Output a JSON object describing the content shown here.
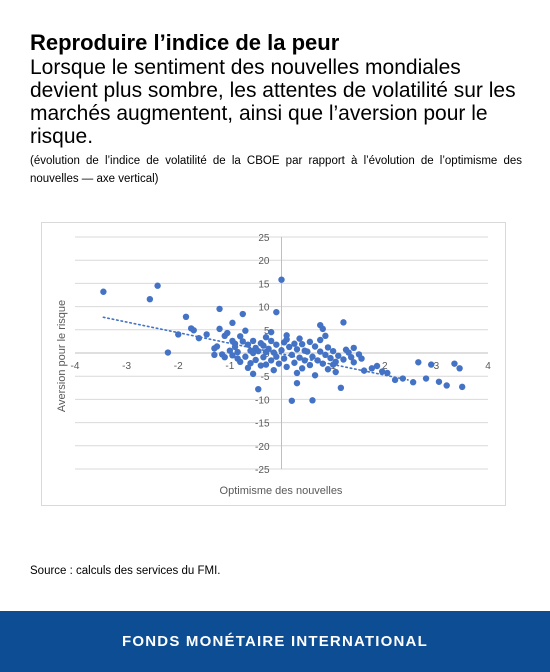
{
  "header": {
    "title": "Reproduire l’indice de la peur",
    "subtitle": "Lorsque le sentiment des nouvelles mondiales devient plus sombre, les attentes de volatilité sur les marchés augmentent, ainsi que l’aversion pour le risque.",
    "note": "(évolution de l’indice de volatilité de la CBOE par rapport à l’évolution de l’optimisme des nouvelles — axe vertical)"
  },
  "source": "Source : calculs des services du FMI.",
  "footer": {
    "org": "FONDS MONÉTAIRE INTERNATIONAL"
  },
  "colors": {
    "marker": "#4472c4",
    "footer_bg": "#0c4d94",
    "grid": "#d9d9d9",
    "axis": "#bfbfbf"
  },
  "chart_data": {
    "type": "scatter",
    "xlabel": "Optimisme des nouvelles",
    "ylabel": "Aversion pour le risque",
    "xlim": [
      -4,
      4
    ],
    "ylim": [
      -25,
      25
    ],
    "xticks": [
      "-4",
      "-3",
      "-2",
      "-1",
      "0",
      "1",
      "2",
      "3",
      "4"
    ],
    "yticks": [
      "25",
      "20",
      "15",
      "10",
      "5",
      "0",
      "-5",
      "-10",
      "-15",
      "-20",
      "-25"
    ],
    "grid": "horizontal",
    "trendline": {
      "style": "dotted",
      "x": [
        -3.45,
        2.45
      ],
      "y": [
        7.7,
        -5.8
      ]
    },
    "points": [
      [
        -3.45,
        13.2
      ],
      [
        -2.55,
        11.6
      ],
      [
        -2.4,
        14.5
      ],
      [
        -2.2,
        0.1
      ],
      [
        -2.0,
        4.0
      ],
      [
        -1.85,
        7.8
      ],
      [
        -1.75,
        5.3
      ],
      [
        -1.7,
        4.9
      ],
      [
        -1.6,
        3.2
      ],
      [
        -1.45,
        4.0
      ],
      [
        -1.3,
        1.0
      ],
      [
        -1.2,
        9.5
      ],
      [
        -1.2,
        5.2
      ],
      [
        -1.15,
        -0.3
      ],
      [
        -1.1,
        3.7
      ],
      [
        -1.05,
        4.3
      ],
      [
        -0.95,
        6.5
      ],
      [
        -0.9,
        2.0
      ],
      [
        -0.85,
        -1.2
      ],
      [
        -0.75,
        8.4
      ],
      [
        -0.7,
        4.8
      ],
      [
        -0.6,
        0.5
      ],
      [
        -0.55,
        -4.5
      ],
      [
        -0.45,
        -7.8
      ],
      [
        -0.4,
        -2.7
      ],
      [
        -0.3,
        0.2
      ],
      [
        -0.2,
        4.5
      ],
      [
        -0.1,
        8.8
      ],
      [
        0.0,
        15.8
      ],
      [
        0.1,
        2.9
      ],
      [
        0.2,
        -10.3
      ],
      [
        0.3,
        -6.5
      ],
      [
        0.45,
        0.5
      ],
      [
        0.6,
        -10.2
      ],
      [
        0.75,
        6.0
      ],
      [
        0.8,
        5.2
      ],
      [
        0.85,
        3.7
      ],
      [
        1.0,
        -2.5
      ],
      [
        1.15,
        -7.5
      ],
      [
        1.2,
        6.6
      ],
      [
        1.3,
        0.1
      ],
      [
        1.4,
        -2.0
      ],
      [
        1.55,
        -1.2
      ],
      [
        1.6,
        -3.8
      ],
      [
        1.75,
        -3.3
      ],
      [
        1.85,
        -2.8
      ],
      [
        1.95,
        -4.0
      ],
      [
        2.05,
        -4.3
      ],
      [
        2.2,
        -5.8
      ],
      [
        2.35,
        -5.5
      ],
      [
        2.55,
        -6.3
      ],
      [
        2.65,
        -2.0
      ],
      [
        2.8,
        -5.5
      ],
      [
        2.9,
        -2.5
      ],
      [
        3.05,
        -6.2
      ],
      [
        3.2,
        -7.0
      ],
      [
        3.35,
        -2.3
      ],
      [
        3.45,
        -3.3
      ],
      [
        3.5,
        -7.3
      ],
      [
        -1.0,
        0.5
      ],
      [
        -0.95,
        -0.5
      ],
      [
        -0.9,
        1.3
      ],
      [
        -0.85,
        0.2
      ],
      [
        -0.8,
        -1.9
      ],
      [
        -0.75,
        2.5
      ],
      [
        -0.7,
        -0.8
      ],
      [
        -0.65,
        1.8
      ],
      [
        -0.6,
        -2.2
      ],
      [
        -0.55,
        2.6
      ],
      [
        -0.5,
        1.1
      ],
      [
        -0.5,
        -1.5
      ],
      [
        -0.45,
        0.4
      ],
      [
        -0.4,
        2.1
      ],
      [
        -0.35,
        -0.9
      ],
      [
        -0.35,
        1.6
      ],
      [
        -0.3,
        -2.5
      ],
      [
        -0.25,
        0.9
      ],
      [
        -0.2,
        -1.6
      ],
      [
        -0.2,
        2.6
      ],
      [
        -0.15,
        0.1
      ],
      [
        -0.1,
        -0.8
      ],
      [
        -0.1,
        1.8
      ],
      [
        -0.05,
        -2.3
      ],
      [
        0.0,
        0.6
      ],
      [
        0.05,
        2.3
      ],
      [
        0.05,
        -1.2
      ],
      [
        0.1,
        -3.0
      ],
      [
        0.15,
        1.3
      ],
      [
        0.2,
        -0.4
      ],
      [
        0.25,
        2.0
      ],
      [
        0.25,
        -2.1
      ],
      [
        0.3,
        0.8
      ],
      [
        0.35,
        -1.0
      ],
      [
        0.4,
        1.9
      ],
      [
        0.4,
        -3.3
      ],
      [
        0.45,
        -1.6
      ],
      [
        0.5,
        0.3
      ],
      [
        0.55,
        2.4
      ],
      [
        0.55,
        -2.6
      ],
      [
        0.6,
        -0.8
      ],
      [
        0.65,
        1.4
      ],
      [
        0.7,
        -1.6
      ],
      [
        0.75,
        0.3
      ],
      [
        0.8,
        -2.3
      ],
      [
        0.85,
        -0.4
      ],
      [
        0.9,
        1.2
      ],
      [
        0.95,
        -1.1
      ],
      [
        1.0,
        0.4
      ],
      [
        1.05,
        -1.9
      ],
      [
        1.1,
        -0.6
      ],
      [
        1.2,
        -1.4
      ],
      [
        1.25,
        0.7
      ],
      [
        1.35,
        -0.9
      ],
      [
        -1.1,
        -0.9
      ],
      [
        -1.25,
        1.4
      ],
      [
        -1.3,
        -0.4
      ],
      [
        -0.95,
        2.6
      ],
      [
        -0.65,
        -3.2
      ],
      [
        -0.3,
        3.4
      ],
      [
        0.1,
        3.8
      ],
      [
        0.3,
        -4.3
      ],
      [
        -0.15,
        -3.7
      ],
      [
        0.65,
        -4.8
      ],
      [
        0.9,
        -3.5
      ],
      [
        1.05,
        -4.1
      ],
      [
        -0.8,
        3.6
      ],
      [
        -0.55,
        0.0
      ],
      [
        0.35,
        3.1
      ],
      [
        0.75,
        2.8
      ],
      [
        1.4,
        1.1
      ],
      [
        1.5,
        -0.3
      ]
    ]
  }
}
